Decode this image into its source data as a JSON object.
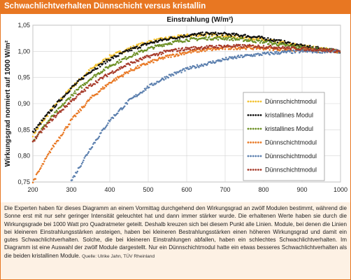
{
  "header": {
    "title": "Schwachlichtverhalten Dünnschicht versus kristallin"
  },
  "chart_data": {
    "type": "scatter",
    "title": "",
    "xlabel": "Einstrahlung (W/m²)",
    "ylabel": "Wirkungsgrad normiert auf 1000 W/m²",
    "xlim": [
      200,
      1000
    ],
    "ylim": [
      0.75,
      1.05
    ],
    "x_ticks": [
      "200",
      "300",
      "400",
      "500",
      "600",
      "700",
      "800",
      "900",
      "1000"
    ],
    "y_ticks": [
      "0,75",
      "0,80",
      "0,85",
      "0,90",
      "0,95",
      "1,00",
      "1,05"
    ],
    "grid": true,
    "legend_position": "right",
    "x": [
      200,
      250,
      300,
      350,
      400,
      450,
      500,
      550,
      600,
      650,
      700,
      750,
      800,
      850,
      900,
      950,
      1000
    ],
    "series": [
      {
        "name": "Dünnschichtmodul",
        "color": "#f2c12e",
        "values": [
          0.84,
          0.89,
          0.93,
          0.965,
          0.99,
          1.005,
          1.018,
          1.025,
          1.03,
          1.032,
          1.03,
          1.027,
          1.022,
          1.016,
          1.01,
          1.005,
          1.0
        ]
      },
      {
        "name": "kristallines Modul",
        "color": "#111111",
        "values": [
          0.845,
          0.89,
          0.93,
          0.962,
          0.985,
          1.002,
          1.015,
          1.024,
          1.03,
          1.034,
          1.033,
          1.03,
          1.025,
          1.018,
          1.01,
          1.005,
          1.0
        ]
      },
      {
        "name": "kristallines Modul",
        "color": "#6b8e23",
        "values": [
          0.83,
          0.875,
          0.915,
          0.948,
          0.972,
          0.99,
          1.005,
          1.015,
          1.022,
          1.025,
          1.025,
          1.022,
          1.018,
          1.012,
          1.007,
          1.003,
          1.0
        ]
      },
      {
        "name": "Dünnschichtmodul",
        "color": "#e87722",
        "values": [
          0.75,
          0.815,
          0.868,
          0.91,
          0.94,
          0.962,
          0.978,
          0.99,
          0.998,
          1.003,
          1.006,
          1.007,
          1.006,
          1.004,
          1.002,
          1.001,
          1.0
        ]
      },
      {
        "name": "Dünnschichtmodul",
        "color": "#5b7fae",
        "values": [
          null,
          null,
          0.752,
          0.815,
          0.868,
          0.905,
          0.932,
          0.952,
          0.966,
          0.976,
          0.985,
          0.991,
          0.995,
          0.998,
          1.0,
          1.0,
          1.0
        ]
      },
      {
        "name": "Dünnschichtmodul",
        "color": "#a63a2a",
        "values": [
          0.828,
          0.87,
          0.905,
          0.935,
          0.958,
          0.976,
          0.99,
          1.0,
          1.005,
          1.008,
          1.01,
          1.01,
          1.009,
          1.007,
          1.005,
          1.003,
          1.0
        ]
      }
    ]
  },
  "caption": {
    "text": "Die Experten haben für dieses Diagramm an einem Vormittag durchgehend den Wirkungsgrad an zwölf Modulen bestimmt, während die Sonne erst mit nur sehr geringer Intensität geleuchtet hat und dann immer stärker wurde. Die erhaltenen Werte haben sie durch die Wirkungsgrade bei 1000 Watt pro Quadratmeter geteilt. Deshalb kreuzen sich bei diesem Punkt alle Linien. Module, bei denen die Linien bei kleineren Einstrahlungsstärken ansteigen, haben bei kleineren Bestrahlungsstärken einen höheren Wirkungsgrad und damit ein gutes Schwachlichtverhalten. Solche, die bei kleineren Einstrahlungen abfallen, haben ein schlechtes Schwachlichtverhalten. Im Diagramm ist eine Auswahl der zwölf Module dargestellt. Nur ein Dünnschichtmodul hatte ein etwas besseres Schwachlichtverhalten als die beiden kristallinen Module.",
    "source": "Quelle: Ulrike Jahn, TÜV Rheinland"
  }
}
